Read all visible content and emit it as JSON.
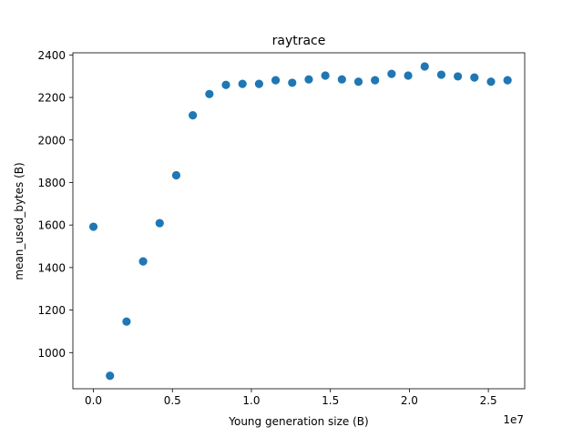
{
  "chart_data": {
    "type": "scatter",
    "title": "raytrace",
    "xlabel": "Young generation size (B)",
    "ylabel": "mean_used_bytes (B)",
    "x_offset_text": "1e7",
    "xlim": [
      -1300000,
      27300000
    ],
    "ylim": [
      830,
      2410
    ],
    "x_ticks": [
      0,
      5000000,
      10000000,
      15000000,
      20000000,
      25000000
    ],
    "x_tick_labels": [
      "0.0",
      "0.5",
      "1.0",
      "1.5",
      "2.0",
      "2.5"
    ],
    "y_ticks": [
      1000,
      1200,
      1400,
      1600,
      1800,
      2000,
      2200,
      2400
    ],
    "y_tick_labels": [
      "1000",
      "1200",
      "1400",
      "1600",
      "1800",
      "2000",
      "2200",
      "2400"
    ],
    "marker_color": "#1f77b4",
    "grid": false,
    "points": [
      {
        "x": 0,
        "y": 1592
      },
      {
        "x": 1048576,
        "y": 891
      },
      {
        "x": 2097152,
        "y": 1146
      },
      {
        "x": 3145728,
        "y": 1429
      },
      {
        "x": 4194304,
        "y": 1609
      },
      {
        "x": 5242880,
        "y": 1834
      },
      {
        "x": 6291456,
        "y": 2116
      },
      {
        "x": 7340032,
        "y": 2216
      },
      {
        "x": 8388608,
        "y": 2259
      },
      {
        "x": 9437184,
        "y": 2264
      },
      {
        "x": 10485760,
        "y": 2264
      },
      {
        "x": 11534336,
        "y": 2281
      },
      {
        "x": 12582912,
        "y": 2269
      },
      {
        "x": 13631488,
        "y": 2285
      },
      {
        "x": 14680064,
        "y": 2303
      },
      {
        "x": 15728640,
        "y": 2285
      },
      {
        "x": 16777216,
        "y": 2274
      },
      {
        "x": 17825792,
        "y": 2281
      },
      {
        "x": 18874368,
        "y": 2311
      },
      {
        "x": 19922944,
        "y": 2303
      },
      {
        "x": 20971520,
        "y": 2346
      },
      {
        "x": 22020096,
        "y": 2307
      },
      {
        "x": 23068672,
        "y": 2299
      },
      {
        "x": 24117248,
        "y": 2294
      },
      {
        "x": 25165824,
        "y": 2274
      },
      {
        "x": 26214400,
        "y": 2281
      }
    ]
  }
}
